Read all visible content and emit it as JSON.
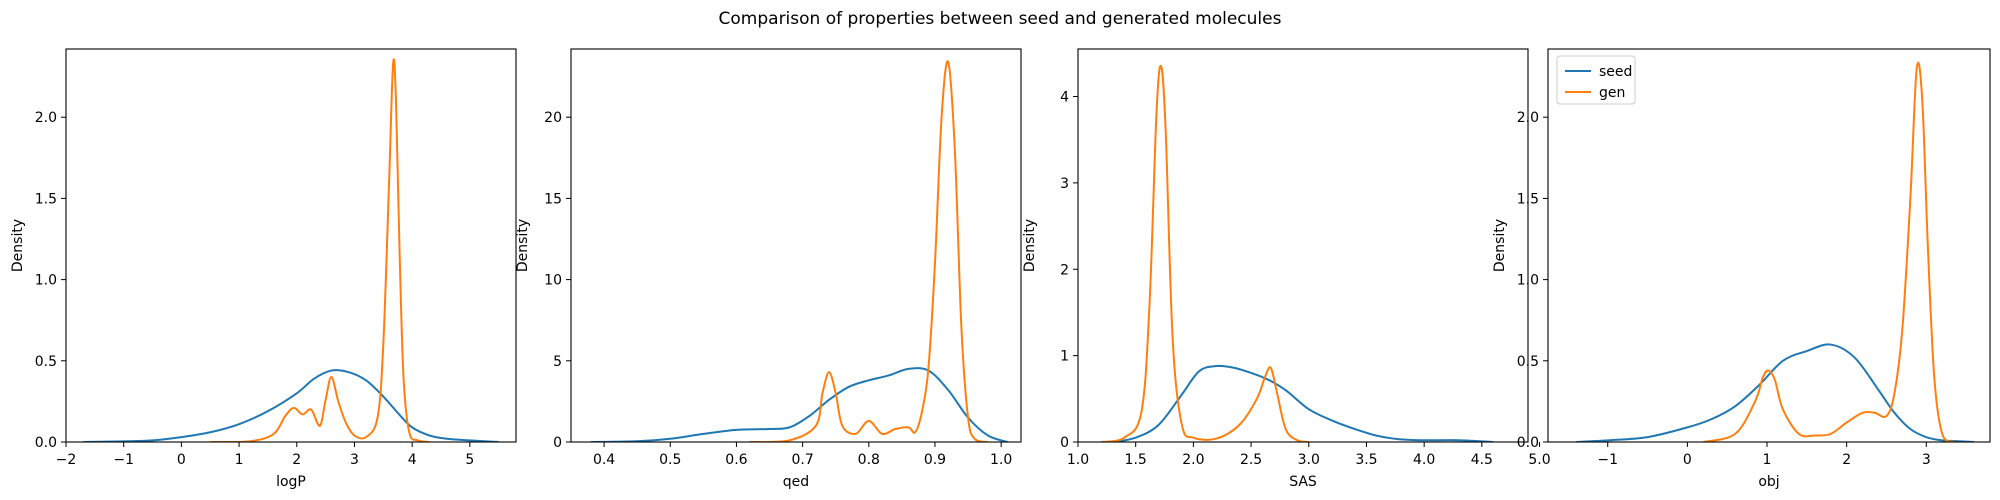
{
  "figure": {
    "title": "Comparison of properties between seed and generated molecules"
  },
  "legend": {
    "entries": [
      {
        "name": "seed",
        "color": "#1f77b4"
      },
      {
        "name": "gen",
        "color": "#ff7f0e"
      }
    ]
  },
  "colors": {
    "seed": "#1f77b4",
    "gen": "#ff7f0e"
  },
  "chart_data": [
    {
      "type": "line",
      "xlabel": "logP",
      "ylabel": "Density",
      "xlim": [
        -2.0,
        5.8
      ],
      "ylim": [
        0,
        2.42
      ],
      "xticks": [
        -2,
        -1,
        0,
        1,
        2,
        3,
        4,
        5
      ],
      "yticks": [
        0.0,
        0.5,
        1.0,
        1.5,
        2.0
      ],
      "yticklabels": [
        "0.0",
        "0.5",
        "1.0",
        "1.5",
        "2.0"
      ],
      "legend": false,
      "series": [
        {
          "name": "seed",
          "x": [
            -1.7,
            -1.0,
            -0.5,
            0.0,
            0.5,
            1.0,
            1.5,
            2.0,
            2.3,
            2.6,
            2.9,
            3.2,
            3.5,
            3.8,
            4.0,
            4.3,
            4.6,
            5.0,
            5.5
          ],
          "y": [
            0.0,
            0.004,
            0.01,
            0.03,
            0.06,
            0.11,
            0.19,
            0.3,
            0.39,
            0.44,
            0.43,
            0.38,
            0.28,
            0.16,
            0.09,
            0.04,
            0.02,
            0.01,
            0.0
          ]
        },
        {
          "name": "gen",
          "x": [
            0.5,
            1.2,
            1.6,
            1.8,
            1.95,
            2.1,
            2.25,
            2.4,
            2.5,
            2.6,
            2.72,
            2.85,
            3.0,
            3.2,
            3.4,
            3.5,
            3.6,
            3.67,
            3.72,
            3.78,
            3.85,
            3.95,
            4.1,
            4.3
          ],
          "y": [
            0.0,
            0.005,
            0.05,
            0.16,
            0.21,
            0.17,
            0.2,
            0.1,
            0.26,
            0.4,
            0.25,
            0.12,
            0.04,
            0.03,
            0.15,
            0.6,
            1.6,
            2.33,
            2.1,
            1.2,
            0.4,
            0.06,
            0.01,
            0.0
          ]
        }
      ]
    },
    {
      "type": "line",
      "xlabel": "qed",
      "ylabel": "Density",
      "xlim": [
        0.35,
        1.03
      ],
      "ylim": [
        0,
        24.2
      ],
      "xticks": [
        0.4,
        0.5,
        0.6,
        0.7,
        0.8,
        0.9,
        1.0
      ],
      "xticklabels": [
        "0.4",
        "0.5",
        "0.6",
        "0.7",
        "0.8",
        "0.9",
        "1.0"
      ],
      "yticks": [
        0,
        5,
        10,
        15,
        20
      ],
      "legend": false,
      "series": [
        {
          "name": "seed",
          "x": [
            0.38,
            0.45,
            0.5,
            0.55,
            0.6,
            0.65,
            0.68,
            0.71,
            0.74,
            0.77,
            0.8,
            0.83,
            0.86,
            0.89,
            0.92,
            0.95,
            0.98,
            1.01
          ],
          "y": [
            0.0,
            0.05,
            0.2,
            0.5,
            0.75,
            0.8,
            0.9,
            1.6,
            2.6,
            3.4,
            3.8,
            4.1,
            4.5,
            4.4,
            3.2,
            1.5,
            0.4,
            0.0
          ]
        },
        {
          "name": "gen",
          "x": [
            0.62,
            0.68,
            0.72,
            0.73,
            0.74,
            0.75,
            0.76,
            0.78,
            0.8,
            0.82,
            0.84,
            0.86,
            0.87,
            0.88,
            0.89,
            0.9,
            0.91,
            0.92,
            0.93,
            0.94,
            0.95,
            0.96,
            0.98
          ],
          "y": [
            0.0,
            0.1,
            1.0,
            3.0,
            4.3,
            3.0,
            1.0,
            0.5,
            1.3,
            0.5,
            0.8,
            0.9,
            0.6,
            1.8,
            4.5,
            11.0,
            20.0,
            23.4,
            18.0,
            7.0,
            1.5,
            0.2,
            0.0
          ]
        }
      ]
    },
    {
      "type": "line",
      "xlabel": "SAS",
      "ylabel": "Density",
      "xlim": [
        1.0,
        4.9
      ],
      "ylim": [
        0,
        4.55
      ],
      "xticks": [
        1.0,
        1.5,
        2.0,
        2.5,
        3.0,
        3.5,
        4.0,
        4.5,
        5.0
      ],
      "xticklabels": [
        "1.0",
        "1.5",
        "2.0",
        "2.5",
        "3.0",
        "3.5",
        "4.0",
        "4.5",
        "5.0"
      ],
      "yticks": [
        0,
        1,
        2,
        3,
        4
      ],
      "legend": false,
      "series": [
        {
          "name": "seed",
          "x": [
            1.3,
            1.5,
            1.7,
            1.9,
            2.05,
            2.2,
            2.35,
            2.5,
            2.65,
            2.8,
            3.0,
            3.2,
            3.4,
            3.6,
            3.8,
            4.0,
            4.3,
            4.6
          ],
          "y": [
            0.0,
            0.05,
            0.2,
            0.55,
            0.82,
            0.88,
            0.86,
            0.8,
            0.72,
            0.6,
            0.38,
            0.25,
            0.15,
            0.07,
            0.03,
            0.02,
            0.02,
            0.0
          ]
        },
        {
          "name": "gen",
          "x": [
            1.2,
            1.4,
            1.55,
            1.62,
            1.68,
            1.72,
            1.76,
            1.82,
            1.9,
            2.0,
            2.2,
            2.4,
            2.55,
            2.62,
            2.67,
            2.72,
            2.8,
            2.9,
            3.0
          ],
          "y": [
            0.0,
            0.05,
            0.35,
            1.6,
            3.8,
            4.35,
            3.6,
            1.2,
            0.2,
            0.05,
            0.04,
            0.2,
            0.5,
            0.75,
            0.86,
            0.6,
            0.15,
            0.02,
            0.0
          ]
        }
      ]
    },
    {
      "type": "line",
      "xlabel": "obj",
      "ylabel": "Density",
      "xlim": [
        -1.75,
        3.8
      ],
      "ylim": [
        0,
        2.42
      ],
      "xticks": [
        -1,
        0,
        1,
        2,
        3
      ],
      "yticks": [
        0.0,
        0.5,
        1.0,
        1.5,
        2.0
      ],
      "yticklabels": [
        "0.0",
        "0.5",
        "1.0",
        "1.5",
        "2.0"
      ],
      "legend": true,
      "legend_position": "top-left",
      "series": [
        {
          "name": "seed",
          "x": [
            -1.4,
            -1.0,
            -0.5,
            0.0,
            0.3,
            0.6,
            0.9,
            1.2,
            1.5,
            1.8,
            2.1,
            2.4,
            2.6,
            2.8,
            3.0,
            3.2,
            3.4,
            3.6
          ],
          "y": [
            0.0,
            0.01,
            0.03,
            0.09,
            0.14,
            0.22,
            0.35,
            0.5,
            0.56,
            0.6,
            0.52,
            0.32,
            0.18,
            0.08,
            0.03,
            0.01,
            0.005,
            0.0
          ]
        },
        {
          "name": "gen",
          "x": [
            0.2,
            0.6,
            0.85,
            0.95,
            1.02,
            1.1,
            1.2,
            1.4,
            1.6,
            1.8,
            2.0,
            2.2,
            2.35,
            2.5,
            2.6,
            2.7,
            2.8,
            2.88,
            2.95,
            3.02,
            3.1,
            3.2,
            3.35
          ],
          "y": [
            0.0,
            0.05,
            0.25,
            0.4,
            0.44,
            0.38,
            0.2,
            0.05,
            0.04,
            0.05,
            0.12,
            0.18,
            0.18,
            0.16,
            0.3,
            0.7,
            1.5,
            2.3,
            2.1,
            1.2,
            0.4,
            0.05,
            0.0
          ]
        }
      ]
    }
  ]
}
